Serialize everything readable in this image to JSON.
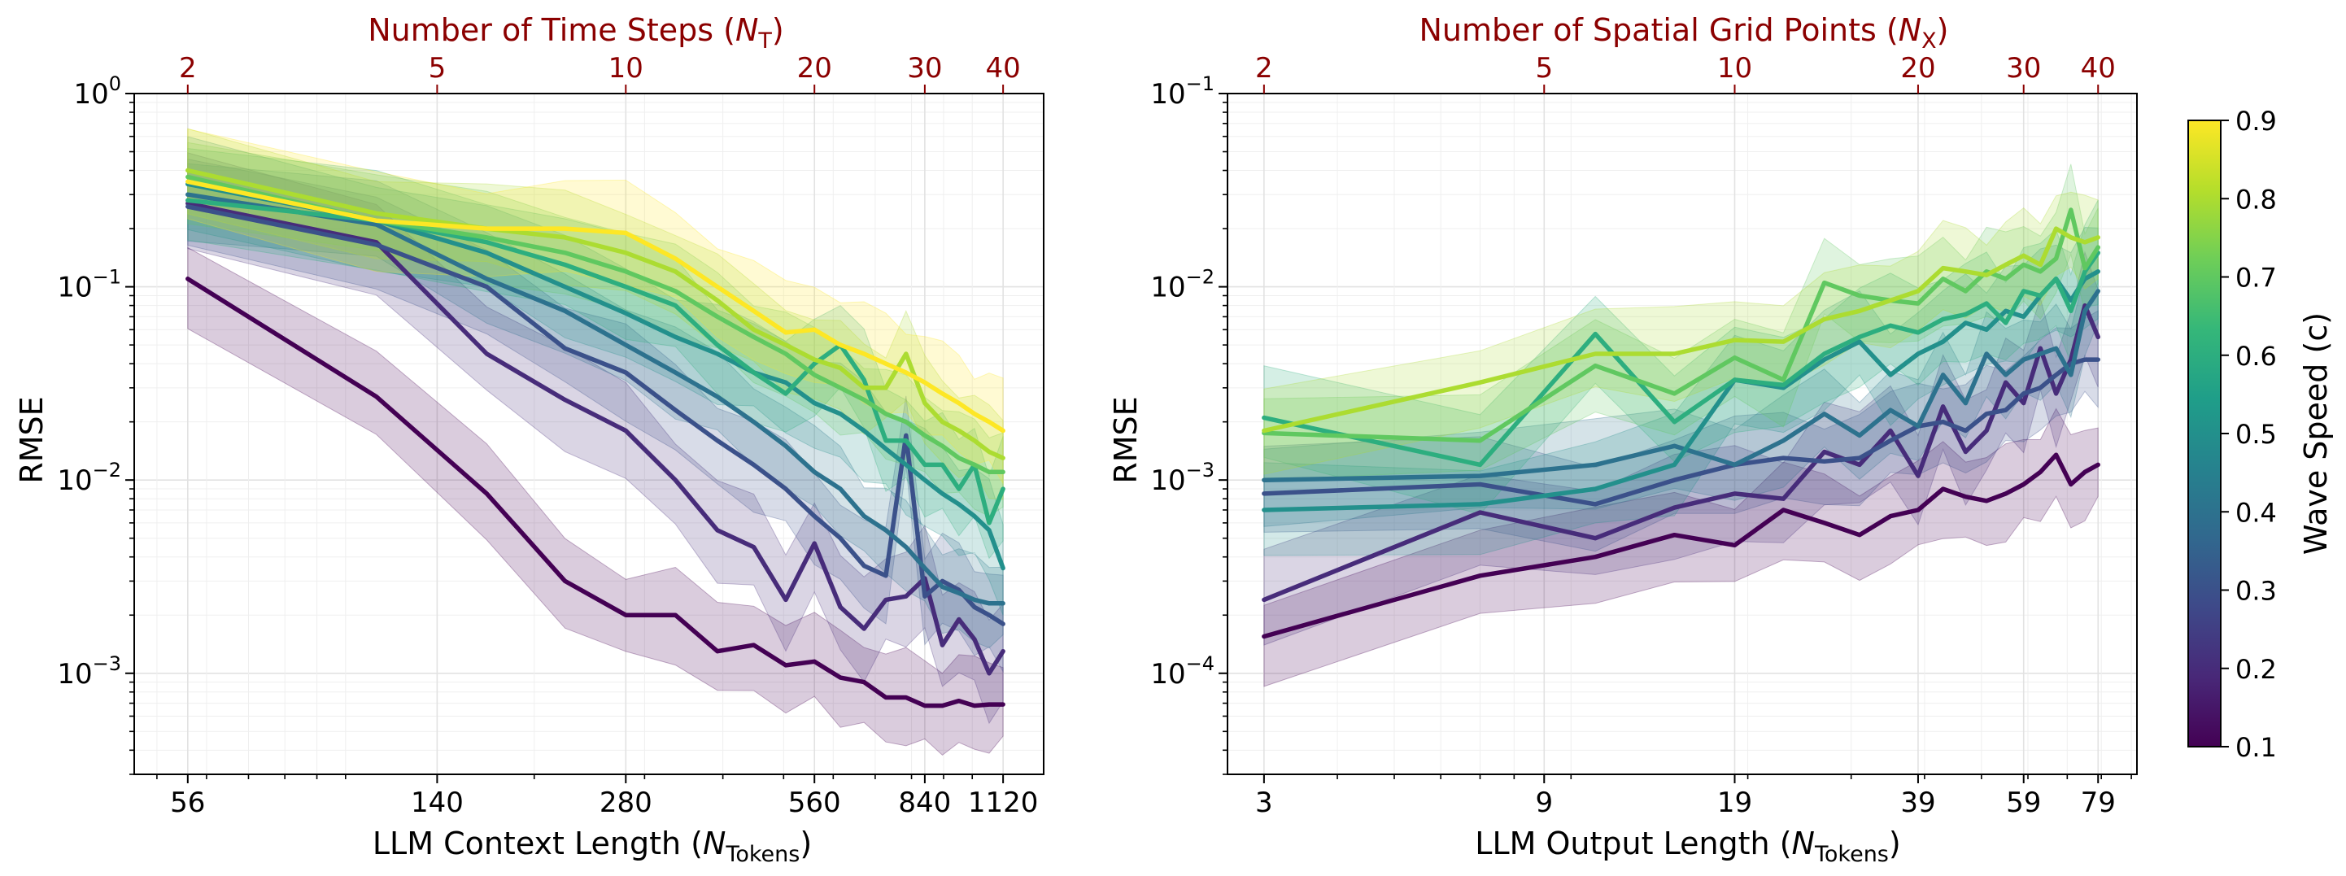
{
  "colors": {
    "top_axis": "#8b0000",
    "colormap": [
      "#440154",
      "#482878",
      "#3e4989",
      "#31688e",
      "#26828e",
      "#1f9e89",
      "#35b779",
      "#6ece58",
      "#b5de2b",
      "#fde725"
    ]
  },
  "colorbar": {
    "label": "Wave Speed (c)",
    "ticks": [
      "0.1",
      "0.2",
      "0.3",
      "0.4",
      "0.5",
      "0.6",
      "0.7",
      "0.8",
      "0.9"
    ],
    "min": 0.1,
    "max": 0.9
  },
  "chart_data": [
    {
      "type": "line",
      "id": "left",
      "title": "Number of Time Steps (N_T)",
      "top_label": {
        "prefix": "Number of Time Steps (",
        "var": "N",
        "sub": "T",
        "suffix": ")"
      },
      "top_ticks": [
        {
          "v": 56,
          "label": "2"
        },
        {
          "v": 140,
          "label": "5"
        },
        {
          "v": 280,
          "label": "10"
        },
        {
          "v": 560,
          "label": "20"
        },
        {
          "v": 840,
          "label": "30"
        },
        {
          "v": 1120,
          "label": "40"
        }
      ],
      "xlabel": {
        "prefix": "LLM Context Length (",
        "var": "N",
        "sub": "Tokens",
        "suffix": ")"
      },
      "xticks": [
        {
          "v": 56,
          "label": "56"
        },
        {
          "v": 140,
          "label": "140"
        },
        {
          "v": 280,
          "label": "280"
        },
        {
          "v": 560,
          "label": "560"
        },
        {
          "v": 840,
          "label": "840"
        },
        {
          "v": 1120,
          "label": "1120"
        }
      ],
      "xscale": "log",
      "xlim": [
        46,
        1300
      ],
      "ylabel": "RMSE",
      "yscale": "log",
      "ylim": [
        0.0003,
        1.0
      ],
      "yticks": [
        {
          "v": 0.001,
          "exp": "−3"
        },
        {
          "v": 0.01,
          "exp": "−2"
        },
        {
          "v": 0.1,
          "exp": "−1"
        },
        {
          "v": 1,
          "exp": "0"
        }
      ],
      "grid": true,
      "series": [
        {
          "name": "c=0.1",
          "c": 0.1,
          "x": [
            56,
            112,
            168,
            224,
            280,
            336,
            392,
            448,
            504,
            560,
            616,
            672,
            728,
            784,
            840,
            896,
            952,
            1008,
            1064,
            1120
          ],
          "y": [
            0.11,
            0.027,
            0.0085,
            0.003,
            0.002,
            0.002,
            0.0013,
            0.0014,
            0.0011,
            0.00115,
            0.00095,
            0.0009,
            0.00075,
            0.00075,
            0.00068,
            0.00068,
            0.00072,
            0.00068,
            0.00069,
            0.00069
          ]
        },
        {
          "name": "c=0.2",
          "c": 0.2,
          "x": [
            56,
            112,
            168,
            224,
            280,
            336,
            392,
            448,
            504,
            560,
            616,
            672,
            728,
            784,
            840,
            896,
            952,
            1008,
            1064,
            1120
          ],
          "y": [
            0.27,
            0.17,
            0.045,
            0.026,
            0.018,
            0.01,
            0.0055,
            0.0045,
            0.0024,
            0.0047,
            0.0022,
            0.0017,
            0.0024,
            0.0025,
            0.0031,
            0.0014,
            0.0019,
            0.0015,
            0.001,
            0.0013
          ]
        },
        {
          "name": "c=0.3",
          "c": 0.3,
          "x": [
            56,
            112,
            168,
            224,
            280,
            336,
            392,
            448,
            504,
            560,
            616,
            672,
            728,
            784,
            840,
            896,
            952,
            1008,
            1064,
            1120
          ],
          "y": [
            0.26,
            0.165,
            0.1,
            0.048,
            0.036,
            0.023,
            0.016,
            0.012,
            0.009,
            0.0065,
            0.005,
            0.0036,
            0.0032,
            0.017,
            0.0025,
            0.003,
            0.0027,
            0.0022,
            0.002,
            0.0018
          ]
        },
        {
          "name": "c=0.4",
          "c": 0.4,
          "x": [
            56,
            112,
            168,
            224,
            280,
            336,
            392,
            448,
            504,
            560,
            616,
            672,
            728,
            784,
            840,
            896,
            952,
            1008,
            1064,
            1120
          ],
          "y": [
            0.3,
            0.21,
            0.11,
            0.075,
            0.05,
            0.036,
            0.027,
            0.02,
            0.015,
            0.011,
            0.009,
            0.0065,
            0.0055,
            0.0045,
            0.0035,
            0.0028,
            0.0026,
            0.0024,
            0.0023,
            0.0023
          ]
        },
        {
          "name": "c=0.5",
          "c": 0.5,
          "x": [
            56,
            112,
            168,
            224,
            280,
            336,
            392,
            448,
            504,
            560,
            616,
            672,
            728,
            784,
            840,
            896,
            952,
            1008,
            1064,
            1120
          ],
          "y": [
            0.34,
            0.22,
            0.15,
            0.1,
            0.073,
            0.055,
            0.045,
            0.036,
            0.032,
            0.025,
            0.022,
            0.018,
            0.0145,
            0.012,
            0.01,
            0.0085,
            0.0075,
            0.0065,
            0.0055,
            0.0035
          ]
        },
        {
          "name": "c=0.6",
          "c": 0.6,
          "x": [
            56,
            112,
            168,
            224,
            280,
            336,
            392,
            448,
            504,
            560,
            616,
            672,
            728,
            784,
            840,
            896,
            952,
            1008,
            1064,
            1120
          ],
          "y": [
            0.28,
            0.22,
            0.17,
            0.13,
            0.1,
            0.08,
            0.05,
            0.036,
            0.028,
            0.04,
            0.05,
            0.033,
            0.016,
            0.016,
            0.012,
            0.012,
            0.009,
            0.012,
            0.006,
            0.009
          ]
        },
        {
          "name": "c=0.7",
          "c": 0.7,
          "x": [
            56,
            112,
            168,
            224,
            280,
            336,
            392,
            448,
            504,
            560,
            616,
            672,
            728,
            784,
            840,
            896,
            952,
            1008,
            1064,
            1120
          ],
          "y": [
            0.37,
            0.22,
            0.18,
            0.15,
            0.12,
            0.095,
            0.07,
            0.055,
            0.045,
            0.035,
            0.03,
            0.026,
            0.022,
            0.02,
            0.017,
            0.015,
            0.013,
            0.012,
            0.011,
            0.011
          ]
        },
        {
          "name": "c=0.8",
          "c": 0.8,
          "x": [
            56,
            112,
            168,
            224,
            280,
            336,
            392,
            448,
            504,
            560,
            616,
            672,
            728,
            784,
            840,
            896,
            952,
            1008,
            1064,
            1120
          ],
          "y": [
            0.4,
            0.24,
            0.2,
            0.18,
            0.15,
            0.12,
            0.085,
            0.06,
            0.05,
            0.042,
            0.038,
            0.03,
            0.03,
            0.045,
            0.025,
            0.02,
            0.018,
            0.016,
            0.014,
            0.013
          ]
        },
        {
          "name": "c=0.9",
          "c": 0.9,
          "x": [
            56,
            112,
            168,
            224,
            280,
            336,
            392,
            448,
            504,
            560,
            616,
            672,
            728,
            784,
            840,
            896,
            952,
            1008,
            1064,
            1120
          ],
          "y": [
            0.35,
            0.22,
            0.2,
            0.2,
            0.19,
            0.14,
            0.1,
            0.075,
            0.058,
            0.06,
            0.05,
            0.045,
            0.04,
            0.036,
            0.032,
            0.028,
            0.025,
            0.022,
            0.02,
            0.018
          ]
        }
      ]
    },
    {
      "type": "line",
      "id": "right",
      "title": "Number of Spatial Grid Points (N_X)",
      "top_label": {
        "prefix": "Number of Spatial Grid Points (",
        "var": "N",
        "sub": "X",
        "suffix": ")"
      },
      "top_ticks": [
        {
          "v": 3,
          "label": "2"
        },
        {
          "v": 9,
          "label": "5"
        },
        {
          "v": 19,
          "label": "10"
        },
        {
          "v": 39,
          "label": "20"
        },
        {
          "v": 59,
          "label": "30"
        },
        {
          "v": 79,
          "label": "40"
        }
      ],
      "xlabel": {
        "prefix": "LLM Output Length (",
        "var": "N",
        "sub": "Tokens",
        "suffix": ")"
      },
      "xticks": [
        {
          "v": 3,
          "label": "3"
        },
        {
          "v": 9,
          "label": "9"
        },
        {
          "v": 19,
          "label": "19"
        },
        {
          "v": 39,
          "label": "39"
        },
        {
          "v": 59,
          "label": "59"
        },
        {
          "v": 79,
          "label": "79"
        }
      ],
      "xscale": "log",
      "xlim": [
        2.6,
        92
      ],
      "ylabel": "RMSE",
      "yscale": "log",
      "ylim": [
        3e-05,
        0.1
      ],
      "yticks": [
        {
          "v": 0.0001,
          "exp": "−4"
        },
        {
          "v": 0.001,
          "exp": "−3"
        },
        {
          "v": 0.01,
          "exp": "−2"
        },
        {
          "v": 0.1,
          "exp": "−1"
        }
      ],
      "grid": true,
      "series": [
        {
          "name": "c=0.1",
          "c": 0.1,
          "x": [
            3,
            7,
            11,
            15,
            19,
            23,
            27,
            31,
            35,
            39,
            43,
            47,
            51,
            55,
            59,
            63,
            67,
            71,
            75,
            79
          ],
          "y": [
            0.000155,
            0.00032,
            0.0004,
            0.00052,
            0.00046,
            0.0007,
            0.0006,
            0.00052,
            0.00065,
            0.0007,
            0.0009,
            0.00082,
            0.00078,
            0.00085,
            0.00095,
            0.0011,
            0.00135,
            0.00095,
            0.0011,
            0.0012
          ]
        },
        {
          "name": "c=0.2",
          "c": 0.2,
          "x": [
            3,
            7,
            11,
            15,
            19,
            23,
            27,
            31,
            35,
            39,
            43,
            47,
            51,
            55,
            59,
            63,
            67,
            71,
            75,
            79
          ],
          "y": [
            0.00024,
            0.00068,
            0.0005,
            0.00072,
            0.00085,
            0.0008,
            0.0014,
            0.0012,
            0.0018,
            0.00105,
            0.0024,
            0.0014,
            0.0018,
            0.0032,
            0.0025,
            0.0048,
            0.0028,
            0.0042,
            0.008,
            0.0055
          ]
        },
        {
          "name": "c=0.3",
          "c": 0.3,
          "x": [
            3,
            7,
            11,
            15,
            19,
            23,
            27,
            31,
            35,
            39,
            43,
            47,
            51,
            55,
            59,
            63,
            67,
            71,
            75,
            79
          ],
          "y": [
            0.00085,
            0.00095,
            0.00075,
            0.001,
            0.0012,
            0.0013,
            0.00125,
            0.0013,
            0.0016,
            0.0019,
            0.002,
            0.0018,
            0.0022,
            0.0023,
            0.0028,
            0.003,
            0.0035,
            0.004,
            0.0042,
            0.0042
          ]
        },
        {
          "name": "c=0.4",
          "c": 0.4,
          "x": [
            3,
            7,
            11,
            15,
            19,
            23,
            27,
            31,
            35,
            39,
            43,
            47,
            51,
            55,
            59,
            63,
            67,
            71,
            75,
            79
          ],
          "y": [
            0.001,
            0.00105,
            0.0012,
            0.0015,
            0.0012,
            0.0016,
            0.0022,
            0.0017,
            0.0023,
            0.0019,
            0.0035,
            0.0025,
            0.0045,
            0.0035,
            0.0042,
            0.0045,
            0.0048,
            0.0035,
            0.0075,
            0.0095
          ]
        },
        {
          "name": "c=0.5",
          "c": 0.5,
          "x": [
            3,
            7,
            11,
            15,
            19,
            23,
            27,
            31,
            35,
            39,
            43,
            47,
            51,
            55,
            59,
            63,
            67,
            71,
            75,
            79
          ],
          "y": [
            0.0007,
            0.00075,
            0.0009,
            0.0012,
            0.0033,
            0.003,
            0.0042,
            0.0052,
            0.0035,
            0.0045,
            0.0052,
            0.0065,
            0.006,
            0.0075,
            0.007,
            0.009,
            0.011,
            0.0085,
            0.011,
            0.012
          ]
        },
        {
          "name": "c=0.6",
          "c": 0.6,
          "x": [
            3,
            7,
            11,
            15,
            19,
            23,
            27,
            31,
            35,
            39,
            43,
            47,
            51,
            55,
            59,
            63,
            67,
            71,
            75,
            79
          ],
          "y": [
            0.0021,
            0.0012,
            0.0057,
            0.002,
            0.0033,
            0.0031,
            0.0045,
            0.0055,
            0.0063,
            0.0058,
            0.0068,
            0.0072,
            0.0082,
            0.0065,
            0.0095,
            0.009,
            0.011,
            0.0075,
            0.012,
            0.015
          ]
        },
        {
          "name": "c=0.7",
          "c": 0.7,
          "x": [
            3,
            7,
            11,
            15,
            19,
            23,
            27,
            31,
            35,
            39,
            43,
            47,
            51,
            55,
            59,
            63,
            67,
            71,
            75,
            79
          ],
          "y": [
            0.00175,
            0.0016,
            0.0039,
            0.0028,
            0.0043,
            0.0033,
            0.0105,
            0.009,
            0.0085,
            0.0082,
            0.011,
            0.0095,
            0.012,
            0.011,
            0.013,
            0.012,
            0.014,
            0.025,
            0.0125,
            0.016
          ]
        },
        {
          "name": "c=0.8",
          "c": 0.8,
          "x": [
            3,
            7,
            11,
            15,
            19,
            23,
            27,
            31,
            35,
            39,
            43,
            47,
            51,
            55,
            59,
            63,
            67,
            71,
            75,
            79
          ],
          "y": [
            0.0018,
            0.0032,
            0.0045,
            0.0045,
            0.0053,
            0.0052,
            0.0068,
            0.0075,
            0.0085,
            0.0095,
            0.0125,
            0.012,
            0.0115,
            0.013,
            0.0145,
            0.013,
            0.02,
            0.018,
            0.017,
            0.018
          ]
        }
      ]
    }
  ]
}
